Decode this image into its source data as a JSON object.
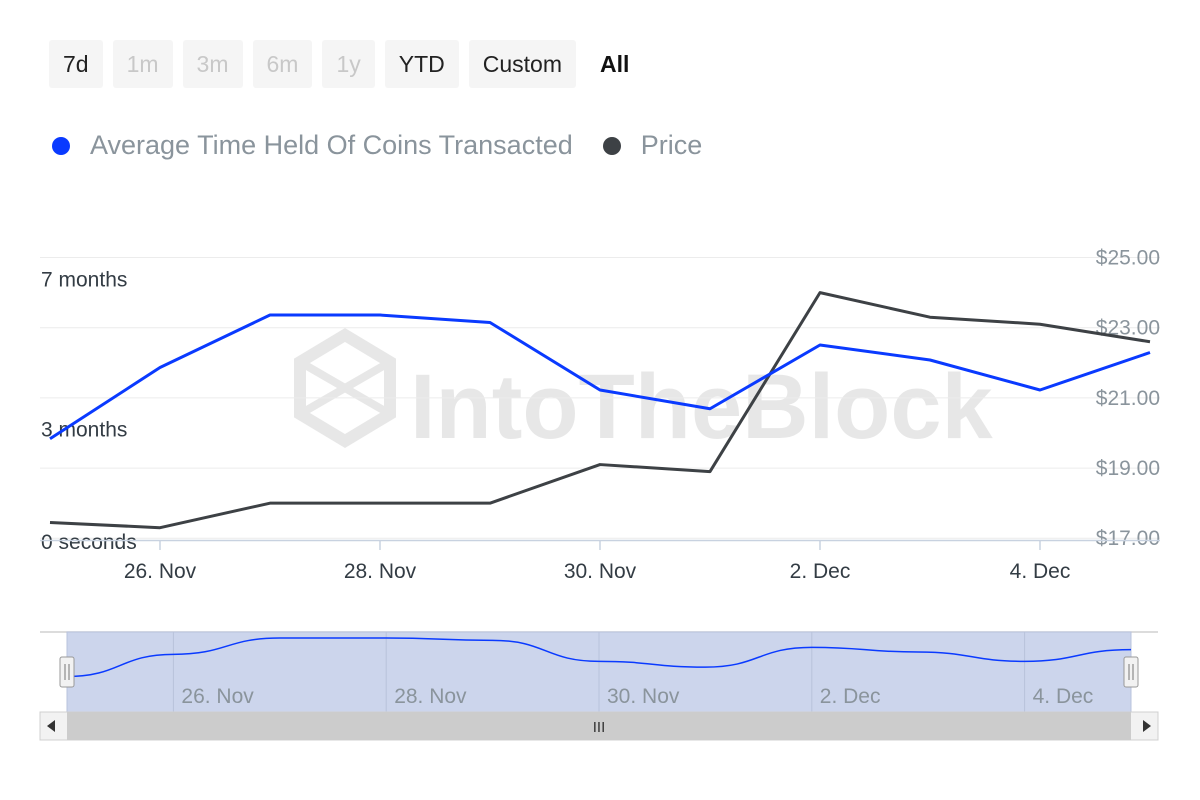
{
  "range_selector": {
    "buttons": [
      {
        "label": "7d",
        "state": "normal"
      },
      {
        "label": "1m",
        "state": "disabled"
      },
      {
        "label": "3m",
        "state": "disabled"
      },
      {
        "label": "6m",
        "state": "disabled"
      },
      {
        "label": "1y",
        "state": "disabled"
      },
      {
        "label": "YTD",
        "state": "normal"
      },
      {
        "label": "Custom",
        "state": "normal"
      },
      {
        "label": "All",
        "state": "active"
      }
    ]
  },
  "watermark": "IntoTheBlock",
  "navigator": {
    "ticks": [
      "26. Nov",
      "28. Nov",
      "30. Nov",
      "2. Dec",
      "4. Dec"
    ],
    "scrollbar_grip": "III"
  },
  "chart_data": {
    "type": "line",
    "x": [
      "25. Nov",
      "26. Nov",
      "27. Nov",
      "28. Nov",
      "29. Nov",
      "30. Nov",
      "1. Dec",
      "2. Dec",
      "3. Dec",
      "4. Dec",
      "5. Dec"
    ],
    "x_tick_labels": [
      "26. Nov",
      "28. Nov",
      "30. Nov",
      "2. Dec",
      "4. Dec"
    ],
    "left_axis": {
      "tick_labels": [
        "0 seconds",
        "3 months",
        "7 months"
      ],
      "tick_values_months": [
        0,
        3,
        7
      ],
      "ylim_months": [
        0,
        8
      ]
    },
    "right_axis": {
      "tick_labels": [
        "$17.00",
        "$19.00",
        "$21.00",
        "$23.00",
        "$25.00"
      ],
      "tick_values": [
        17,
        19,
        21,
        23,
        25
      ],
      "ylim": [
        16.95,
        25.5
      ]
    },
    "series": [
      {
        "name": "Average Time Held Of Coins Transacted",
        "color": "#0a3aff",
        "axis": "left",
        "unit": "months",
        "values": [
          2.7,
          4.6,
          6.0,
          6.0,
          5.8,
          4.0,
          3.5,
          5.2,
          4.8,
          4.0,
          5.0
        ]
      },
      {
        "name": "Price",
        "color": "#3d4145",
        "axis": "right",
        "unit": "USD",
        "values": [
          17.45,
          17.3,
          18.0,
          18.0,
          18.0,
          19.1,
          18.9,
          24.0,
          23.3,
          23.1,
          22.6
        ]
      }
    ],
    "grid": true,
    "legend_position": "top-left"
  }
}
